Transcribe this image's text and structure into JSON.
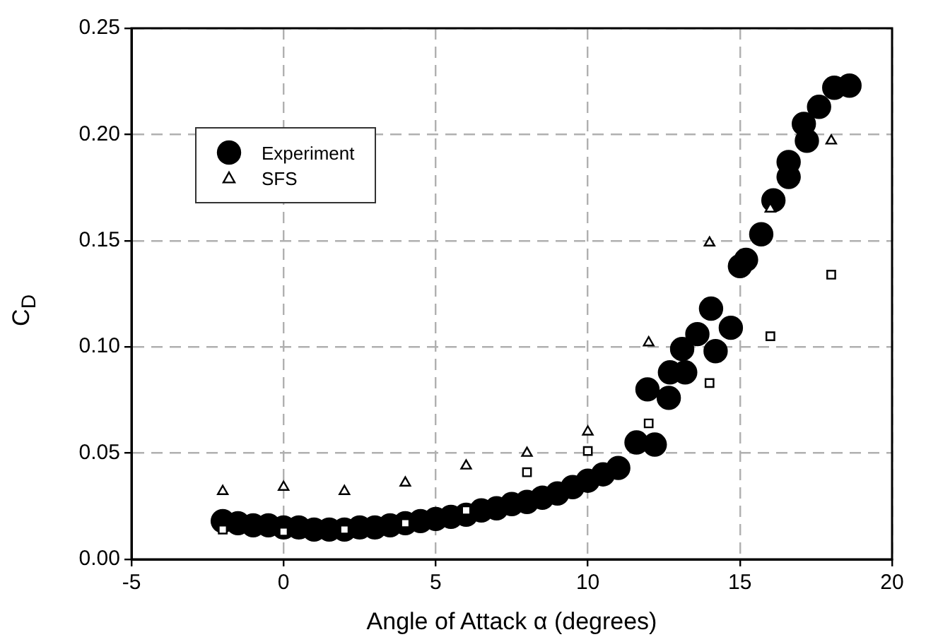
{
  "chart_data": {
    "type": "scatter",
    "xlabel": "Angle of Attack α (degrees)",
    "ylabel": "C$_{D}$",
    "xlim": [
      -5,
      20
    ],
    "xticks": [
      -5,
      0,
      5,
      10,
      15,
      20
    ],
    "ylim": [
      0,
      0.25
    ],
    "yticks": [
      {
        "value": 0,
        "label": "0.00"
      },
      {
        "value": 0.05,
        "label": "0.05"
      },
      {
        "value": 0.1,
        "label": "0.10"
      },
      {
        "value": 0.15,
        "label": "0.15"
      },
      {
        "value": 0.2,
        "label": "0.20"
      },
      {
        "value": 0.25,
        "label": "0.25"
      }
    ],
    "grid": true,
    "legend": "top left",
    "line_style": "dashed",
    "series": [
      {
        "name": "Experiment",
        "color": "#000000",
        "marker": "circle",
        "x": [
          -2,
          -1.5,
          -1,
          -0.5,
          0,
          0.5,
          1,
          1.5,
          2,
          2.5,
          3,
          3.5,
          4,
          4.5,
          5,
          5.5,
          6,
          6.5,
          7,
          7.5,
          8,
          8.5,
          9,
          9.5,
          10,
          10.5,
          11,
          11.6,
          12.2,
          11.96,
          12.66,
          12.7,
          13.1,
          13.2,
          13.6,
          14.2,
          14.05,
          14.7,
          15.0,
          15.2,
          15.7,
          16.1,
          16.6,
          16.6,
          17.1,
          17.2,
          17.6,
          18.1,
          18.6
        ],
        "values": [
          0.018,
          0.017,
          0.016,
          0.016,
          0.015,
          0.015,
          0.014,
          0.014,
          0.014,
          0.015,
          0.015,
          0.016,
          0.017,
          0.018,
          0.019,
          0.02,
          0.021,
          0.023,
          0.024,
          0.026,
          0.027,
          0.029,
          0.031,
          0.034,
          0.037,
          0.04,
          0.043,
          0.055,
          0.054,
          0.08,
          0.076,
          0.088,
          0.099,
          0.088,
          0.106,
          0.098,
          0.118,
          0.109,
          0.138,
          0.141,
          0.153,
          0.169,
          0.187,
          0.18,
          0.205,
          0.197,
          0.213,
          0.222,
          0.223
        ]
      },
      {
        "color": "#000000",
        "marker": "square",
        "x": [
          -2,
          0,
          2,
          4,
          6,
          8,
          10,
          12,
          14,
          16,
          18
        ],
        "values": [
          0.014,
          0.013,
          0.014,
          0.017,
          0.023,
          0.041,
          0.051,
          0.064,
          0.083,
          0.105,
          0.134
        ]
      },
      {
        "name": "SFS",
        "color": "#000000",
        "marker": "triangle",
        "x": [
          -2,
          0,
          2,
          4,
          6,
          8,
          10,
          12,
          14,
          16,
          18
        ],
        "values": [
          0.032,
          0.034,
          0.032,
          0.036,
          0.044,
          0.05,
          0.06,
          0.102,
          0.149,
          0.165,
          0.197
        ]
      }
    ]
  }
}
